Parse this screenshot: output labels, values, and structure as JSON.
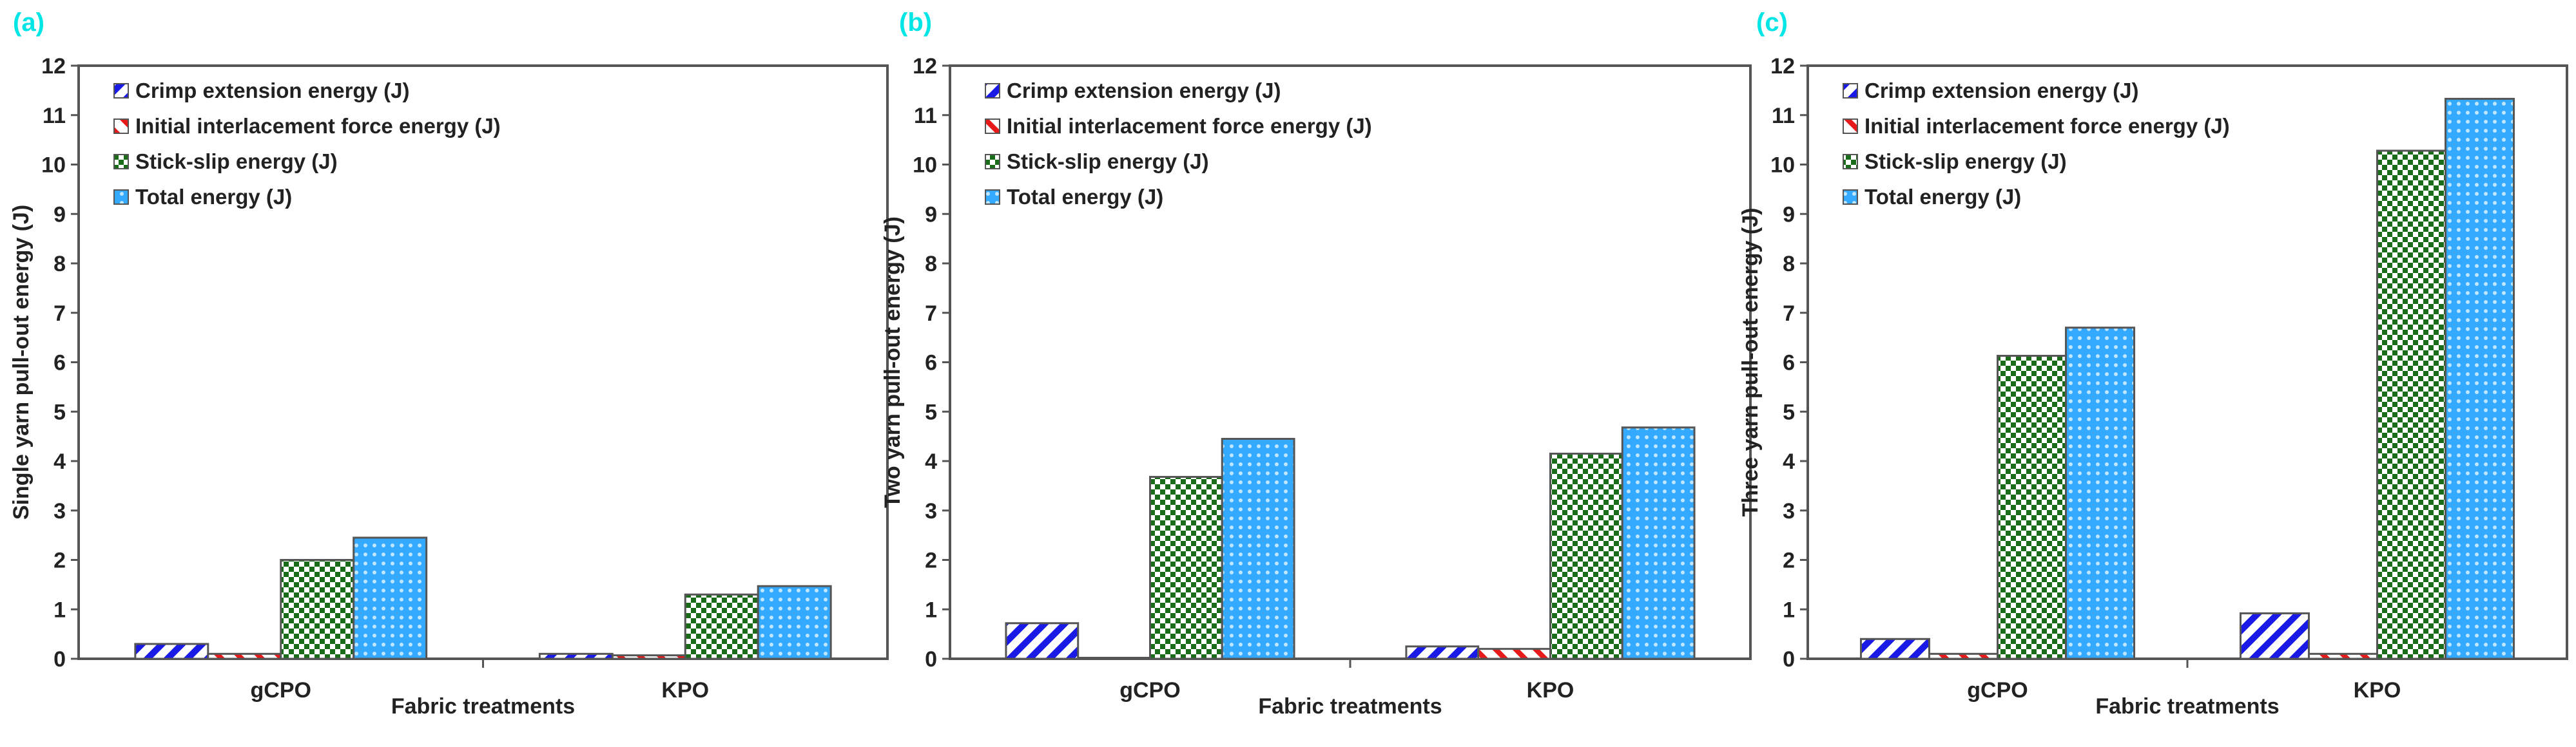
{
  "colors": {
    "crimp": "#1a1ae6",
    "initial": "#e61a1a",
    "stick": "#1a6b1a",
    "total": "#33aaff",
    "panel_label": "#00e5e5"
  },
  "chart_data": [
    {
      "type": "bar",
      "panel_label": "(a)",
      "xlabel": "Fabric treatments",
      "ylabel": "Single yarn pull-out energy (J)",
      "ylim": [
        0,
        12
      ],
      "yticks": [
        "0",
        "1",
        "2",
        "3",
        "4",
        "5",
        "6",
        "7",
        "8",
        "9",
        "10",
        "11",
        "12"
      ],
      "categories": [
        "gCPO",
        "KPO"
      ],
      "legend_placement": "top-left",
      "grid": false,
      "series": [
        {
          "name": "Crimp extension energy (J)",
          "key": "crimp",
          "values": [
            0.3,
            0.1
          ]
        },
        {
          "name": "Initial interlacement force energy (J)",
          "key": "initial",
          "values": [
            0.1,
            0.07
          ]
        },
        {
          "name": "Stick-slip energy (J)",
          "key": "stick",
          "values": [
            2.0,
            1.3
          ]
        },
        {
          "name": "Total energy (J)",
          "key": "total",
          "values": [
            2.45,
            1.47
          ]
        }
      ]
    },
    {
      "type": "bar",
      "panel_label": "(b)",
      "xlabel": "Fabric treatments",
      "ylabel": "Two yarn pull-out energy (J)",
      "ylim": [
        0,
        12
      ],
      "yticks": [
        "0",
        "1",
        "2",
        "3",
        "4",
        "5",
        "6",
        "7",
        "8",
        "9",
        "10",
        "11",
        "12"
      ],
      "categories": [
        "gCPO",
        "KPO"
      ],
      "legend_placement": "top-left",
      "grid": false,
      "series": [
        {
          "name": "Crimp extension energy (J)",
          "key": "crimp",
          "values": [
            0.72,
            0.25
          ]
        },
        {
          "name": "Initial interlacement force energy (J)",
          "key": "initial",
          "values": [
            0.02,
            0.2
          ]
        },
        {
          "name": "Stick-slip energy (J)",
          "key": "stick",
          "values": [
            3.68,
            4.15
          ]
        },
        {
          "name": "Total energy (J)",
          "key": "total",
          "values": [
            4.45,
            4.68
          ]
        }
      ]
    },
    {
      "type": "bar",
      "panel_label": "(c)",
      "xlabel": "Fabric treatments",
      "ylabel": "Three yarn pull-out energy (J)",
      "ylim": [
        0,
        12
      ],
      "yticks": [
        "0",
        "1",
        "2",
        "3",
        "4",
        "5",
        "6",
        "7",
        "8",
        "9",
        "10",
        "11",
        "12"
      ],
      "categories": [
        "gCPO",
        "KPO"
      ],
      "legend_placement": "top-left",
      "grid": false,
      "series": [
        {
          "name": "Crimp extension energy (J)",
          "key": "crimp",
          "values": [
            0.4,
            0.92
          ]
        },
        {
          "name": "Initial interlacement force energy (J)",
          "key": "initial",
          "values": [
            0.1,
            0.1
          ]
        },
        {
          "name": "Stick-slip energy (J)",
          "key": "stick",
          "values": [
            6.13,
            10.28
          ]
        },
        {
          "name": "Total energy (J)",
          "key": "total",
          "values": [
            6.7,
            11.33
          ]
        }
      ]
    }
  ]
}
